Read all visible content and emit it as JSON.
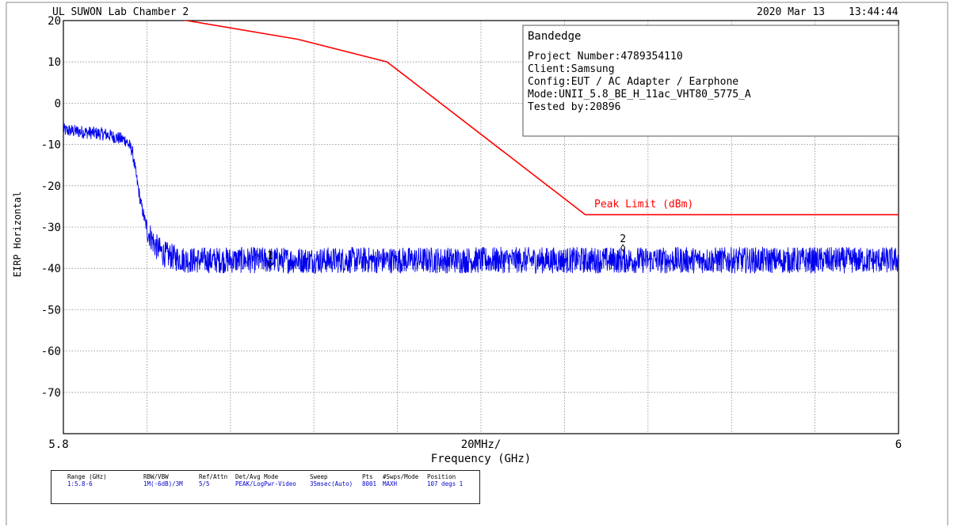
{
  "header": {
    "lab": "UL SUWON Lab Chamber 2",
    "date": "2020 Mar 13",
    "time": "13:44:44"
  },
  "annotation_box": {
    "title": "Bandedge",
    "lines": [
      "Project Number:4789354110",
      "Client:Samsung",
      "Config:EUT / AC Adapter / Earphone",
      "Mode:UNII_5.8_BE_H_11ac_VHT80_5775_A",
      "Tested by:20896"
    ]
  },
  "chart_data": {
    "type": "line",
    "xlabel": "Frequency (GHz)",
    "ylabel": "EIRP Horizontal",
    "x_tick_labels": {
      "left": "5.8",
      "center": "20MHz/",
      "right": "6"
    },
    "xlim": [
      5.8,
      6.0
    ],
    "ylim": [
      -80,
      20
    ],
    "y_ticks": [
      20,
      10,
      0,
      -10,
      -20,
      -30,
      -40,
      -50,
      -60,
      -70
    ],
    "grid": true,
    "series": [
      {
        "name": "Peak Limit (dBm)",
        "color": "#ff0000",
        "x": [
          5.7885,
          5.856,
          5.8775,
          5.925,
          6.0
        ],
        "y": [
          27.0,
          15.5,
          10.0,
          -27.0,
          -27.0
        ]
      },
      {
        "name": "",
        "color": "#0000ee",
        "x": [
          5.8,
          5.805,
          5.81,
          5.815,
          5.8165,
          5.8175,
          5.8185,
          5.82,
          5.822,
          5.824,
          5.827,
          5.83,
          5.835,
          5.84,
          5.85,
          5.88,
          5.92,
          5.96,
          6.0
        ],
        "y": [
          -6.5,
          -7.0,
          -7.5,
          -9.0,
          -11.5,
          -18.0,
          -24.0,
          -30.5,
          -34.5,
          -36.5,
          -37.5,
          -38.0,
          -38.0,
          -38.0,
          -38.0,
          -38.0,
          -38.0,
          -38.0,
          -38.0
        ]
      }
    ],
    "markers": [
      {
        "label": "1",
        "x": 5.8495,
        "y": -39.0
      },
      {
        "label": "2",
        "x": 5.934,
        "y": -35.0
      }
    ],
    "legend_text": "Peak Limit (dBm)"
  },
  "info_table": {
    "columns": [
      {
        "header": "Range (GHz)",
        "value": "1:5.8-6"
      },
      {
        "header": "RBW/VBW",
        "value": "1M(-6dB)/3M"
      },
      {
        "header": "Ref/Attn",
        "value": "5/5"
      },
      {
        "header": "Det/Avg Mode",
        "value": "PEAK/LogPwr-Video"
      },
      {
        "header": "Sweep",
        "value": "35msec(Auto)"
      },
      {
        "header": "Pts",
        "value": "8001"
      },
      {
        "header": "#Swps/Mode",
        "value": "MAXH"
      },
      {
        "header": "Position",
        "value": "107 degs 1"
      }
    ]
  }
}
